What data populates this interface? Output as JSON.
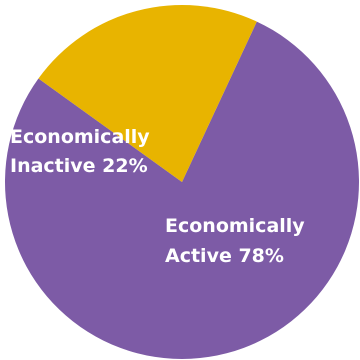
{
  "chart_data": {
    "type": "pie",
    "title": "",
    "slices": [
      {
        "label_line1": "Economically",
        "label_line2": "Active 78%",
        "value": 78,
        "color": "#7d5ba6"
      },
      {
        "label_line1": "Economically",
        "label_line2": "Inactive 22%",
        "value": 22,
        "color": "#e8b400"
      }
    ],
    "legend": "none"
  }
}
